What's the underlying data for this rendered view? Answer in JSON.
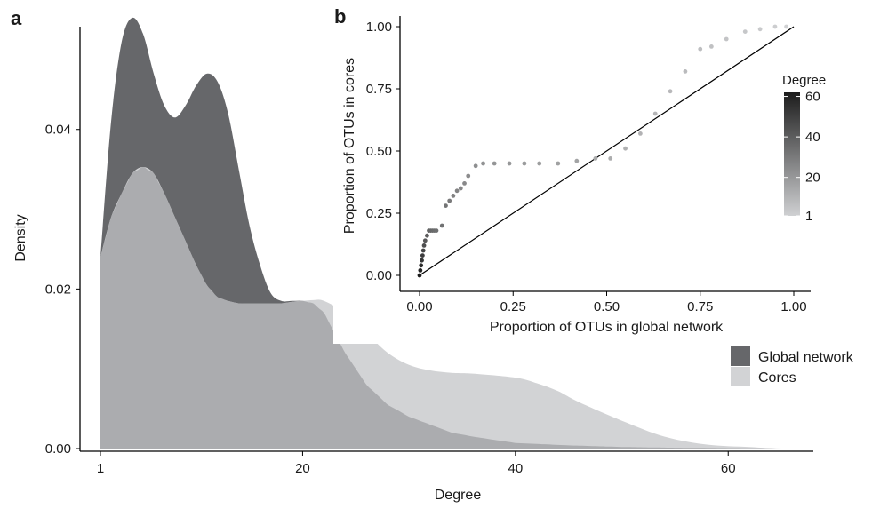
{
  "panels": {
    "a": "a",
    "b": "b"
  },
  "colors": {
    "global": "#66676a",
    "cores": "#d2d3d5",
    "overlap": "#abacaf",
    "line": "#000000"
  },
  "chart_data": [
    {
      "panel": "a",
      "type": "area",
      "xlabel": "Degree",
      "ylabel": "Density",
      "xlim": [
        1,
        68
      ],
      "ylim": [
        0,
        0.054
      ],
      "xticks": [
        1,
        20,
        40,
        60
      ],
      "xtick_labels": [
        "1",
        "20",
        "40",
        "60"
      ],
      "yticks": [
        0,
        0.02,
        0.04
      ],
      "ytick_labels": [
        "0.00",
        "0.02",
        "0.04"
      ],
      "legend_position": "right",
      "series": [
        {
          "name": "Global network",
          "x": [
            1,
            2,
            3,
            4,
            5,
            6,
            7,
            8,
            9,
            10,
            11,
            12,
            13,
            14,
            15,
            16,
            17,
            18,
            19,
            20,
            21,
            22,
            24,
            26,
            28,
            30,
            32,
            34,
            36,
            40,
            45,
            50,
            55,
            60,
            65,
            68
          ],
          "y": [
            0.024,
            0.041,
            0.051,
            0.054,
            0.052,
            0.047,
            0.043,
            0.0415,
            0.043,
            0.0455,
            0.047,
            0.046,
            0.042,
            0.035,
            0.028,
            0.023,
            0.0195,
            0.0185,
            0.0185,
            0.0185,
            0.0182,
            0.017,
            0.012,
            0.008,
            0.0055,
            0.004,
            0.003,
            0.002,
            0.0015,
            0.0007,
            0.0004,
            0.0002,
            0.0001,
            5e-05,
            0.0,
            0.0
          ]
        },
        {
          "name": "Cores",
          "x": [
            1,
            2,
            3,
            4,
            5,
            6,
            7,
            8,
            9,
            10,
            11,
            12,
            13,
            14,
            15,
            16,
            17,
            18,
            19,
            20,
            21,
            22,
            24,
            26,
            28,
            30,
            32,
            34,
            36,
            40,
            42,
            44,
            46,
            50,
            54,
            58,
            62,
            65,
            68
          ],
          "y": [
            0.024,
            0.029,
            0.032,
            0.0345,
            0.0353,
            0.0345,
            0.032,
            0.029,
            0.026,
            0.023,
            0.0205,
            0.019,
            0.0185,
            0.0182,
            0.0182,
            0.0182,
            0.0182,
            0.0182,
            0.0184,
            0.0185,
            0.0186,
            0.0185,
            0.017,
            0.0145,
            0.012,
            0.0105,
            0.0098,
            0.0095,
            0.0094,
            0.0089,
            0.0082,
            0.0072,
            0.0058,
            0.0035,
            0.0015,
            0.0005,
            0.0002,
            0.0,
            0.0
          ]
        }
      ]
    },
    {
      "panel": "b",
      "type": "scatter",
      "xlabel": "Proportion of OTUs in global network",
      "ylabel": "Proportion of OTUs in cores",
      "xlim": [
        0,
        1
      ],
      "ylim": [
        0,
        1
      ],
      "xticks": [
        0,
        0.25,
        0.5,
        0.75,
        1.0
      ],
      "xtick_labels": [
        "0.00",
        "0.25",
        "0.50",
        "0.75",
        "1.00"
      ],
      "yticks": [
        0,
        0.25,
        0.5,
        0.75,
        1.0
      ],
      "ytick_labels": [
        "0.00",
        "0.25",
        "0.50",
        "0.75",
        "1.00"
      ],
      "reference_line": {
        "from": [
          0,
          0
        ],
        "to": [
          1,
          1
        ]
      },
      "colorbar": {
        "title": "Degree",
        "min": 1,
        "max": 62,
        "ticks": [
          1,
          20,
          40,
          60
        ],
        "tick_labels": [
          "1",
          "20",
          "40",
          "60"
        ],
        "color_low": "#cfd0d2",
        "color_high": "#1c1c1c"
      },
      "points": {
        "x": [
          0.0,
          0.002,
          0.004,
          0.006,
          0.008,
          0.01,
          0.012,
          0.015,
          0.02,
          0.025,
          0.03,
          0.035,
          0.04,
          0.045,
          0.06,
          0.07,
          0.08,
          0.09,
          0.1,
          0.11,
          0.12,
          0.13,
          0.15,
          0.17,
          0.2,
          0.24,
          0.28,
          0.32,
          0.37,
          0.42,
          0.47,
          0.51,
          0.55,
          0.59,
          0.63,
          0.67,
          0.71,
          0.75,
          0.78,
          0.82,
          0.87,
          0.91,
          0.95,
          0.98
        ],
        "y": [
          0.0,
          0.02,
          0.04,
          0.06,
          0.08,
          0.1,
          0.12,
          0.14,
          0.16,
          0.18,
          0.18,
          0.18,
          0.18,
          0.18,
          0.2,
          0.28,
          0.3,
          0.32,
          0.34,
          0.35,
          0.37,
          0.4,
          0.44,
          0.45,
          0.45,
          0.45,
          0.45,
          0.45,
          0.45,
          0.46,
          0.47,
          0.47,
          0.51,
          0.57,
          0.65,
          0.74,
          0.82,
          0.91,
          0.92,
          0.95,
          0.98,
          0.99,
          1.0,
          1.0
        ],
        "degree": [
          62,
          60,
          57,
          54,
          51,
          48,
          45,
          42,
          40,
          38,
          37,
          36,
          35,
          34,
          33,
          32,
          30,
          28,
          27,
          26,
          25,
          24,
          23,
          22,
          21,
          20,
          19,
          18,
          17,
          16,
          14,
          13,
          12,
          11,
          10,
          9,
          8,
          7,
          6,
          5,
          4,
          3,
          2,
          1
        ]
      }
    }
  ]
}
